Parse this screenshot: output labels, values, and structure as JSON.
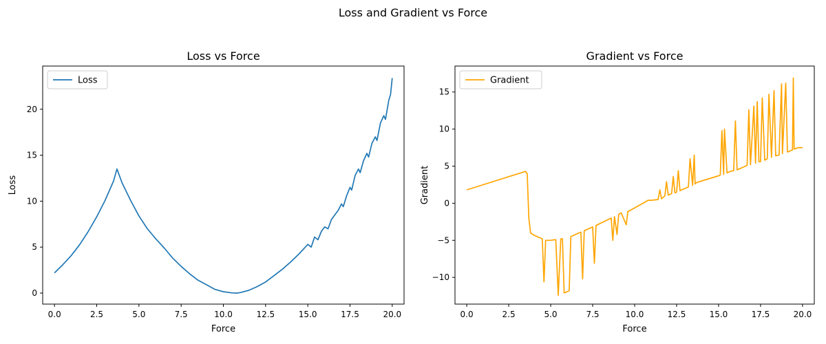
{
  "figure": {
    "suptitle": "Loss and Gradient vs Force"
  },
  "chart_data": [
    {
      "type": "line",
      "title": "Loss vs Force",
      "xlabel": "Force",
      "ylabel": "Loss",
      "xlim": [
        -0.7,
        20.7
      ],
      "ylim": [
        -1.2,
        24.7
      ],
      "xticks": [
        0.0,
        2.5,
        5.0,
        7.5,
        10.0,
        12.5,
        15.0,
        17.5,
        20.0
      ],
      "xtick_labels": [
        "0.0",
        "2.5",
        "5.0",
        "7.5",
        "10.0",
        "12.5",
        "15.0",
        "17.5",
        "20.0"
      ],
      "yticks": [
        0,
        5,
        10,
        15,
        20
      ],
      "ytick_labels": [
        "0",
        "5",
        "10",
        "15",
        "20"
      ],
      "legend": "upper left",
      "grid": false,
      "series": [
        {
          "name": "Loss",
          "color": "#1f77b4",
          "x": [
            0,
            0.5,
            1.0,
            1.5,
            2.0,
            2.5,
            3.0,
            3.5,
            3.7,
            4.0,
            4.5,
            5.0,
            5.5,
            6.0,
            6.5,
            7.0,
            7.5,
            8.0,
            8.5,
            9.0,
            9.5,
            10.0,
            10.5,
            10.8,
            11.0,
            11.5,
            12.0,
            12.5,
            13.0,
            13.5,
            14.0,
            14.5,
            15.0,
            15.2,
            15.4,
            15.6,
            15.8,
            16.0,
            16.2,
            16.4,
            16.6,
            16.8,
            17.0,
            17.1,
            17.3,
            17.5,
            17.6,
            17.8,
            18.0,
            18.1,
            18.3,
            18.5,
            18.6,
            18.8,
            19.0,
            19.1,
            19.3,
            19.5,
            19.6,
            19.8,
            19.9,
            20.0
          ],
          "y": [
            2.2,
            3.1,
            4.1,
            5.3,
            6.7,
            8.3,
            10.1,
            12.2,
            13.5,
            12.0,
            10.1,
            8.4,
            7.0,
            5.9,
            4.9,
            3.8,
            2.9,
            2.1,
            1.4,
            0.9,
            0.4,
            0.15,
            0.02,
            0.0,
            0.05,
            0.3,
            0.7,
            1.2,
            1.9,
            2.6,
            3.4,
            4.3,
            5.3,
            5.0,
            6.1,
            5.8,
            6.7,
            7.2,
            7.0,
            8.0,
            8.5,
            9.0,
            9.7,
            9.4,
            10.6,
            11.5,
            11.2,
            12.8,
            13.5,
            13.1,
            14.4,
            15.2,
            14.8,
            16.3,
            17.0,
            16.6,
            18.5,
            19.3,
            18.9,
            21.0,
            21.6,
            23.4
          ]
        }
      ]
    },
    {
      "type": "line",
      "title": "Gradient vs Force",
      "xlabel": "Force",
      "ylabel": "Gradient",
      "xlim": [
        -0.7,
        20.7
      ],
      "ylim": [
        -13.6,
        18.5
      ],
      "xticks": [
        0.0,
        2.5,
        5.0,
        7.5,
        10.0,
        12.5,
        15.0,
        17.5,
        20.0
      ],
      "xtick_labels": [
        "0.0",
        "2.5",
        "5.0",
        "7.5",
        "10.0",
        "12.5",
        "15.0",
        "17.5",
        "20.0"
      ],
      "yticks": [
        -10,
        -5,
        0,
        5,
        10,
        15
      ],
      "ytick_labels": [
        "−10",
        "−5",
        "0",
        "5",
        "10",
        "15"
      ],
      "legend": "upper left",
      "grid": false,
      "series": [
        {
          "name": "Gradient",
          "color": "#ffa500",
          "x": [
            0,
            3.5,
            3.6,
            3.7,
            3.8,
            4.0,
            4.5,
            4.6,
            4.7,
            5.0,
            5.3,
            5.45,
            5.6,
            5.7,
            5.8,
            6.1,
            6.2,
            6.8,
            6.9,
            7.0,
            7.5,
            7.6,
            7.7,
            8.6,
            8.7,
            8.8,
            8.95,
            9.05,
            9.2,
            9.5,
            9.6,
            9.7,
            10.5,
            10.8,
            11.0,
            11.4,
            11.5,
            11.6,
            11.8,
            11.9,
            12.0,
            12.2,
            12.3,
            12.4,
            12.5,
            12.6,
            12.7,
            13.2,
            13.3,
            13.45,
            13.55,
            13.6,
            13.7,
            15.0,
            15.1,
            15.2,
            15.3,
            15.35,
            15.5,
            15.7,
            15.9,
            16.0,
            16.1,
            16.2,
            16.5,
            16.7,
            16.8,
            16.9,
            17.1,
            17.2,
            17.3,
            17.4,
            17.5,
            17.6,
            17.75,
            17.9,
            18.0,
            18.15,
            18.3,
            18.4,
            18.6,
            18.75,
            18.8,
            19.0,
            19.1,
            19.2,
            19.4,
            19.45,
            19.5,
            19.75,
            19.85,
            19.95,
            20.0
          ],
          "y": [
            1.8,
            4.3,
            4.0,
            -2.0,
            -4.0,
            -4.3,
            -4.8,
            -10.6,
            -5.0,
            -5.0,
            -4.9,
            -12.4,
            -4.8,
            -4.8,
            -12.1,
            -11.8,
            -4.5,
            -3.9,
            -10.2,
            -3.7,
            -3.2,
            -8.1,
            -3.0,
            -2.0,
            -5.0,
            -1.8,
            -4.2,
            -1.5,
            -1.3,
            -2.9,
            -1.1,
            -1.0,
            0.0,
            0.4,
            0.4,
            0.5,
            1.8,
            0.6,
            1.0,
            2.9,
            1.1,
            1.3,
            3.6,
            1.4,
            1.5,
            4.4,
            1.7,
            2.2,
            6.0,
            2.4,
            6.5,
            2.6,
            2.8,
            3.7,
            3.8,
            9.8,
            3.9,
            10.0,
            4.1,
            4.3,
            4.4,
            11.1,
            4.5,
            4.6,
            4.9,
            5.1,
            12.6,
            5.2,
            13.1,
            5.4,
            13.7,
            5.6,
            5.6,
            14.2,
            5.8,
            6.0,
            14.7,
            6.2,
            15.2,
            6.4,
            6.5,
            16.1,
            6.7,
            16.2,
            6.9,
            7.0,
            7.2,
            16.9,
            7.3,
            7.5,
            7.5,
            7.5,
            7.5
          ]
        }
      ]
    }
  ]
}
